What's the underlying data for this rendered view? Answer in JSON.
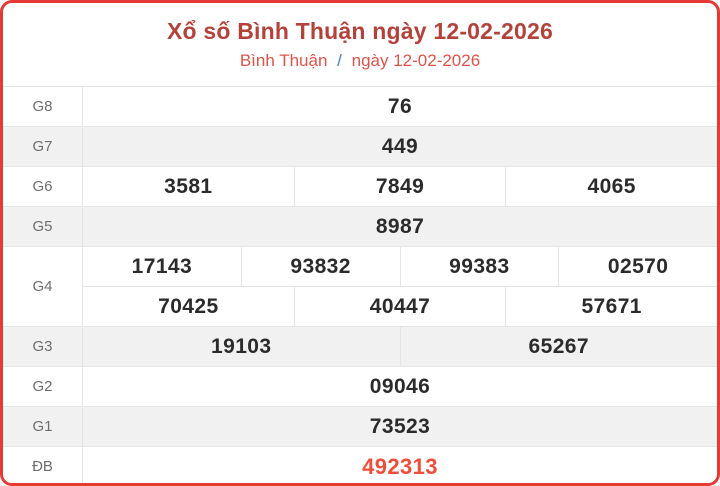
{
  "header": {
    "title": "Xổ số Bình Thuận ngày 12-02-2026",
    "breadcrumb": {
      "province": "Bình Thuận",
      "separator": "/",
      "date": "ngày 12-02-2026"
    }
  },
  "colors": {
    "card_border": "#e53b34",
    "title": "#b5423a",
    "subtitle": "#e1534a",
    "sep_blue": "#3f7fc1",
    "row_alt": "#f1f1f1",
    "cell_border": "#e4e4e4",
    "label_text": "#6e6e6e",
    "number_text": "#2b2b2b",
    "special": "#f04e3a"
  },
  "table": {
    "rows": [
      {
        "label": "G8",
        "groups": [
          [
            "76"
          ]
        ]
      },
      {
        "label": "G7",
        "groups": [
          [
            "449"
          ]
        ]
      },
      {
        "label": "G6",
        "groups": [
          [
            "3581",
            "7849",
            "4065"
          ]
        ]
      },
      {
        "label": "G5",
        "groups": [
          [
            "8987"
          ]
        ]
      },
      {
        "label": "G4",
        "groups": [
          [
            "17143",
            "93832",
            "99383",
            "02570"
          ],
          [
            "70425",
            "40447",
            "57671"
          ]
        ]
      },
      {
        "label": "G3",
        "groups": [
          [
            "19103",
            "65267"
          ]
        ]
      },
      {
        "label": "G2",
        "groups": [
          [
            "09046"
          ]
        ]
      },
      {
        "label": "G1",
        "groups": [
          [
            "73523"
          ]
        ]
      },
      {
        "label": "ĐB",
        "groups": [
          [
            "492313"
          ]
        ]
      }
    ]
  }
}
